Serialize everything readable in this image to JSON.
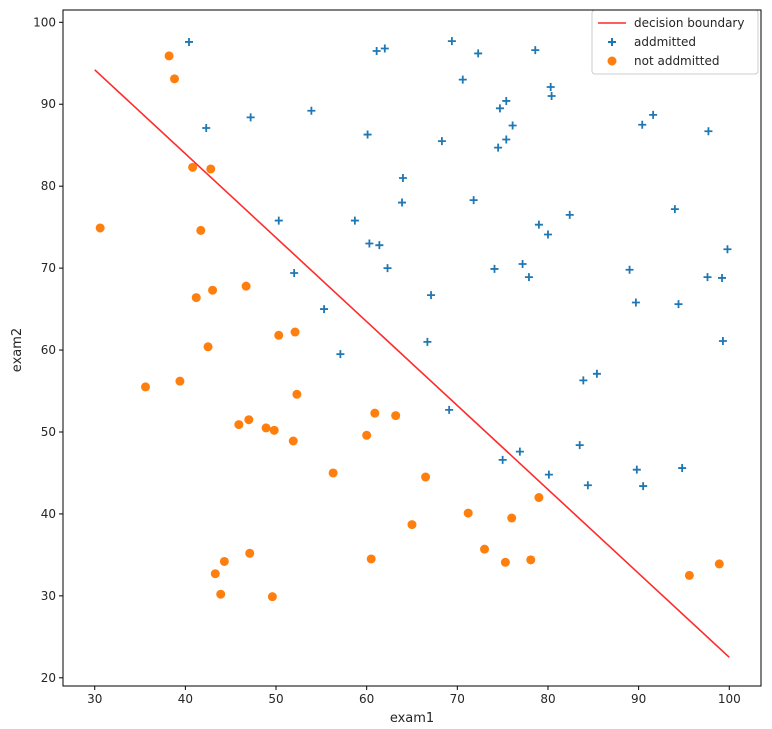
{
  "chart_data": {
    "type": "scatter",
    "title": "",
    "xlabel": "exam1",
    "ylabel": "exam2",
    "xlim": [
      26.5,
      103.5
    ],
    "ylim": [
      19,
      101.5
    ],
    "xticks": [
      30,
      40,
      50,
      60,
      70,
      80,
      90,
      100
    ],
    "yticks": [
      20,
      30,
      40,
      50,
      60,
      70,
      80,
      90,
      100
    ],
    "grid": false,
    "legend_position": "top-right",
    "colors": {
      "boundary": "#ff2a2a",
      "admitted": "#1f77b4",
      "not_admitted": "#ff7f0e"
    },
    "legend": [
      {
        "label": "decision boundary",
        "kind": "line"
      },
      {
        "label": "addmitted",
        "kind": "plus"
      },
      {
        "label": "not addmitted",
        "kind": "dot"
      }
    ],
    "series": [
      {
        "name": "decision boundary",
        "kind": "line",
        "x": [
          30,
          100
        ],
        "y": [
          94.2,
          22.5
        ]
      },
      {
        "name": "addmitted",
        "kind": "plus",
        "points": [
          [
            40.4,
            97.6
          ],
          [
            42.3,
            87.1
          ],
          [
            47.2,
            88.4
          ],
          [
            50.3,
            75.8
          ],
          [
            52.0,
            69.4
          ],
          [
            53.9,
            89.2
          ],
          [
            55.3,
            65.0
          ],
          [
            57.1,
            59.5
          ],
          [
            58.7,
            75.8
          ],
          [
            60.1,
            86.3
          ],
          [
            60.3,
            73.0
          ],
          [
            61.1,
            96.5
          ],
          [
            61.4,
            72.8
          ],
          [
            62.0,
            96.8
          ],
          [
            62.3,
            70.0
          ],
          [
            63.9,
            78.0
          ],
          [
            64.0,
            81.0
          ],
          [
            66.7,
            61.0
          ],
          [
            67.1,
            66.7
          ],
          [
            68.3,
            85.5
          ],
          [
            69.1,
            52.7
          ],
          [
            69.4,
            97.7
          ],
          [
            70.6,
            93.0
          ],
          [
            71.8,
            78.3
          ],
          [
            72.3,
            96.2
          ],
          [
            74.1,
            69.9
          ],
          [
            74.5,
            84.7
          ],
          [
            74.7,
            89.5
          ],
          [
            75.0,
            46.6
          ],
          [
            75.4,
            90.4
          ],
          [
            75.4,
            85.7
          ],
          [
            76.1,
            87.4
          ],
          [
            76.9,
            47.6
          ],
          [
            77.2,
            70.5
          ],
          [
            77.9,
            68.9
          ],
          [
            78.6,
            96.6
          ],
          [
            79.0,
            75.3
          ],
          [
            80.0,
            74.1
          ],
          [
            80.1,
            44.8
          ],
          [
            80.3,
            92.1
          ],
          [
            80.4,
            91.0
          ],
          [
            82.4,
            76.5
          ],
          [
            83.5,
            48.4
          ],
          [
            83.9,
            56.3
          ],
          [
            84.4,
            43.5
          ],
          [
            85.4,
            57.1
          ],
          [
            89.0,
            69.8
          ],
          [
            89.7,
            65.8
          ],
          [
            89.8,
            45.4
          ],
          [
            90.4,
            87.5
          ],
          [
            90.5,
            43.4
          ],
          [
            91.6,
            88.7
          ],
          [
            94.0,
            77.2
          ],
          [
            94.4,
            65.6
          ],
          [
            94.8,
            45.6
          ],
          [
            97.6,
            68.9
          ],
          [
            97.7,
            86.7
          ],
          [
            99.2,
            68.8
          ],
          [
            99.3,
            61.1
          ],
          [
            99.8,
            72.3
          ]
        ]
      },
      {
        "name": "not addmitted",
        "kind": "dot",
        "points": [
          [
            30.6,
            74.9
          ],
          [
            35.6,
            55.5
          ],
          [
            38.2,
            95.9
          ],
          [
            38.8,
            93.1
          ],
          [
            39.4,
            56.2
          ],
          [
            40.8,
            82.3
          ],
          [
            41.2,
            66.4
          ],
          [
            41.7,
            74.6
          ],
          [
            42.5,
            60.4
          ],
          [
            42.8,
            82.1
          ],
          [
            43.0,
            67.3
          ],
          [
            43.3,
            32.7
          ],
          [
            43.9,
            30.2
          ],
          [
            44.3,
            34.2
          ],
          [
            45.9,
            50.9
          ],
          [
            46.7,
            67.8
          ],
          [
            47.0,
            51.5
          ],
          [
            47.1,
            35.2
          ],
          [
            48.9,
            50.5
          ],
          [
            49.6,
            29.9
          ],
          [
            49.8,
            50.2
          ],
          [
            50.3,
            61.8
          ],
          [
            51.9,
            48.9
          ],
          [
            52.1,
            62.2
          ],
          [
            52.3,
            54.6
          ],
          [
            56.3,
            45.0
          ],
          [
            60.0,
            49.6
          ],
          [
            60.5,
            34.5
          ],
          [
            60.9,
            52.3
          ],
          [
            63.2,
            52.0
          ],
          [
            65.0,
            38.7
          ],
          [
            66.5,
            44.5
          ],
          [
            71.2,
            40.1
          ],
          [
            73.0,
            35.7
          ],
          [
            75.3,
            34.1
          ],
          [
            76.0,
            39.5
          ],
          [
            78.1,
            34.4
          ],
          [
            79.0,
            42.0
          ],
          [
            95.6,
            32.5
          ],
          [
            98.9,
            33.9
          ]
        ]
      }
    ]
  }
}
